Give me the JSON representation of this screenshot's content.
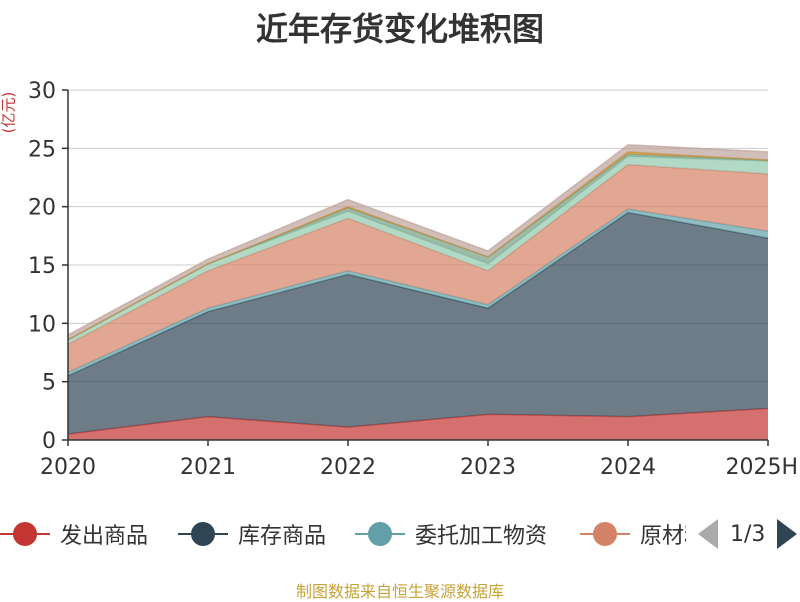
{
  "title": "近年存货变化堆积图",
  "unit": "(亿元)",
  "source": "制图数据来自恒生聚源数据库",
  "pager": "1/3",
  "chart_data": {
    "type": "area",
    "stacked": true,
    "x": [
      "2020",
      "2021",
      "2022",
      "2023",
      "2024",
      "2025H"
    ],
    "ylim": [
      0,
      30
    ],
    "yticks": [
      0,
      5,
      10,
      15,
      20,
      25,
      30
    ],
    "grid": true,
    "legend_position": "bottom",
    "series": [
      {
        "name": "发出商品",
        "color": "#c23531",
        "values": [
          0.5,
          2.0,
          1.1,
          2.2,
          2.0,
          2.7
        ]
      },
      {
        "name": "库存商品",
        "color": "#2f4554",
        "values": [
          5.0,
          9.0,
          13.1,
          9.1,
          17.5,
          14.6
        ]
      },
      {
        "name": "委托加工物资",
        "color": "#61a0a8",
        "values": [
          0.3,
          0.3,
          0.3,
          0.3,
          0.3,
          0.6
        ]
      },
      {
        "name": "原材料",
        "color": "#d48265",
        "values": [
          2.4,
          3.2,
          4.5,
          2.9,
          3.8,
          4.9
        ]
      },
      {
        "name": "",
        "color": "#91c7ae",
        "values": [
          0.4,
          0.6,
          0.6,
          0.6,
          0.7,
          1.1
        ]
      },
      {
        "name": "",
        "color": "#749f83",
        "values": [
          0.0,
          0.0,
          0.3,
          0.6,
          0.2,
          0.1
        ]
      },
      {
        "name": "",
        "color": "#ca8622",
        "values": [
          0.0,
          0.0,
          0.1,
          0.0,
          0.2,
          0.0
        ]
      },
      {
        "name": "",
        "color": "#bda29a",
        "values": [
          0.4,
          0.4,
          0.6,
          0.5,
          0.6,
          0.7
        ]
      }
    ]
  }
}
